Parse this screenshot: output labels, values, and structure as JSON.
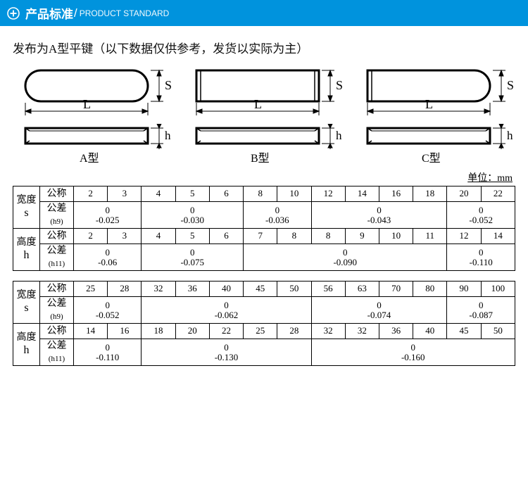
{
  "header": {
    "title_cn": "产品标准",
    "slash": "/",
    "title_en": "PRODUCT STANDARD"
  },
  "description": "发布为A型平键（以下数据仅供参考，发货以实际为主）",
  "diagram_labels": {
    "L": "L",
    "S": "S",
    "h": "h",
    "A": "A型",
    "B": "B型",
    "C": "C型"
  },
  "unit_label": "单位：mm",
  "row_labels": {
    "width_cn": "宽度",
    "width_en": "s",
    "height_cn": "高度",
    "height_en": "h",
    "nominal": "公称",
    "tol": "公差",
    "tol_h9": "(h9)",
    "tol_h11": "(h11)"
  },
  "table1": {
    "s_nominal_groups": [
      [
        2,
        3
      ],
      [
        4,
        5,
        6
      ],
      [
        8,
        10
      ],
      [
        12,
        14,
        16,
        18
      ],
      [
        20,
        22
      ]
    ],
    "s_tol": [
      [
        "0",
        "-0.025"
      ],
      [
        "0",
        "-0.030"
      ],
      [
        "0",
        "-0.036"
      ],
      [
        "0",
        "-0.043"
      ],
      [
        "0",
        "-0.052"
      ]
    ],
    "h_nominal_groups": [
      [
        2,
        3
      ],
      [
        4,
        5,
        6
      ],
      [
        7,
        8
      ],
      [
        8,
        9,
        10,
        11
      ],
      [
        12,
        14
      ]
    ],
    "h_tol": [
      [
        "0",
        "-0.06"
      ],
      [
        "0",
        "-0.075"
      ],
      [
        "0",
        "-0.090"
      ],
      [
        "0",
        "-0.110"
      ]
    ],
    "h_tol_spans": [
      2,
      3,
      6,
      2
    ]
  },
  "table2": {
    "s_nominal_groups": [
      [
        25,
        28
      ],
      [
        32,
        36,
        40,
        45,
        50
      ],
      [
        56,
        63,
        70,
        80
      ],
      [
        90,
        100
      ]
    ],
    "s_tol": [
      [
        "0",
        "-0.052"
      ],
      [
        "0",
        "-0.062"
      ],
      [
        "0",
        "-0.074"
      ],
      [
        "0",
        "-0.087"
      ]
    ],
    "h_nominal_groups": [
      [
        14,
        16
      ],
      [
        18,
        20,
        22,
        25,
        28
      ],
      [
        32,
        32,
        36,
        40
      ],
      [
        45,
        50
      ]
    ],
    "h_tol": [
      [
        "0",
        "-0.110"
      ],
      [
        "0",
        "-0.130"
      ],
      [
        "0",
        "-0.160"
      ]
    ],
    "h_tol_spans": [
      2,
      5,
      6
    ]
  },
  "colors": {
    "header_bg": "#0093dd",
    "border": "#000000",
    "text": "#000000"
  }
}
